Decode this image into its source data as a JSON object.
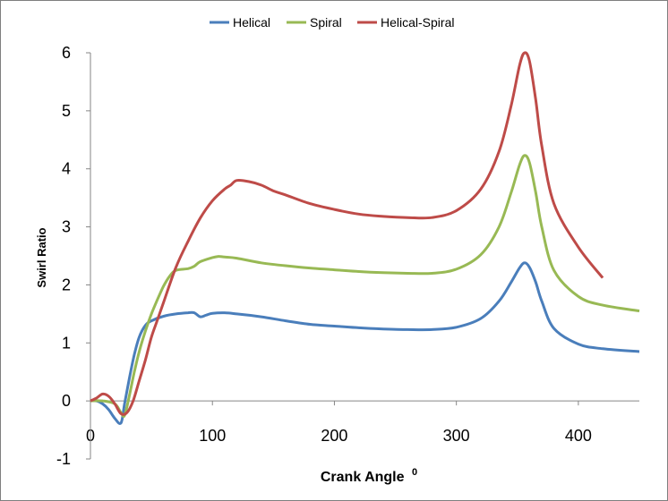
{
  "chart_data": {
    "type": "line",
    "title": "",
    "xlabel": "Crank Angle",
    "xlabel_superscript": "0",
    "ylabel": "Swirl Ratio",
    "xlim": [
      0,
      450
    ],
    "ylim": [
      -1,
      6
    ],
    "x_ticks": [
      "0",
      "100",
      "200",
      "300",
      "400"
    ],
    "y_ticks": [
      "-1",
      "0",
      "1",
      "2",
      "3",
      "4",
      "5",
      "6"
    ],
    "grid": false,
    "legend_position": "top",
    "series": [
      {
        "name": "Helical",
        "color": "#4a7ebb",
        "x": [
          0,
          5,
          10,
          15,
          20,
          25,
          28,
          32,
          36,
          40,
          45,
          50,
          60,
          70,
          80,
          85,
          90,
          95,
          100,
          110,
          120,
          140,
          160,
          180,
          200,
          220,
          240,
          260,
          280,
          300,
          320,
          335,
          345,
          352,
          356,
          360,
          365,
          370,
          380,
          400,
          420,
          450
        ],
        "y": [
          0.0,
          0.0,
          -0.05,
          -0.15,
          -0.3,
          -0.38,
          -0.05,
          0.4,
          0.8,
          1.1,
          1.3,
          1.38,
          1.46,
          1.5,
          1.52,
          1.52,
          1.45,
          1.48,
          1.51,
          1.52,
          1.5,
          1.45,
          1.38,
          1.32,
          1.29,
          1.26,
          1.24,
          1.23,
          1.23,
          1.27,
          1.42,
          1.72,
          2.05,
          2.3,
          2.38,
          2.3,
          2.05,
          1.72,
          1.25,
          0.98,
          0.9,
          0.85
        ]
      },
      {
        "name": "Spiral",
        "color": "#98b954",
        "x": [
          0,
          10,
          20,
          25,
          28,
          32,
          36,
          40,
          45,
          50,
          55,
          60,
          65,
          70,
          80,
          85,
          90,
          100,
          105,
          110,
          120,
          140,
          160,
          180,
          200,
          220,
          240,
          260,
          280,
          300,
          320,
          335,
          345,
          352,
          356,
          360,
          365,
          370,
          380,
          400,
          420,
          450
        ],
        "y": [
          0.0,
          0.0,
          -0.05,
          -0.2,
          -0.25,
          0.1,
          0.5,
          0.85,
          1.2,
          1.5,
          1.75,
          1.98,
          2.15,
          2.25,
          2.28,
          2.32,
          2.4,
          2.47,
          2.49,
          2.48,
          2.46,
          2.38,
          2.33,
          2.29,
          2.26,
          2.23,
          2.21,
          2.2,
          2.2,
          2.27,
          2.52,
          3.0,
          3.6,
          4.08,
          4.23,
          4.1,
          3.6,
          3.0,
          2.25,
          1.8,
          1.65,
          1.55
        ]
      },
      {
        "name": "Helical-Spiral",
        "color": "#be4b48",
        "x": [
          0,
          5,
          10,
          15,
          20,
          25,
          30,
          35,
          40,
          45,
          50,
          55,
          60,
          70,
          80,
          90,
          100,
          110,
          115,
          120,
          130,
          140,
          150,
          160,
          180,
          200,
          220,
          240,
          260,
          280,
          300,
          320,
          335,
          345,
          352,
          356,
          360,
          365,
          370,
          380,
          400,
          420
        ],
        "y": [
          0.0,
          0.05,
          0.12,
          0.08,
          -0.05,
          -0.22,
          -0.2,
          0.0,
          0.35,
          0.7,
          1.1,
          1.4,
          1.7,
          2.3,
          2.75,
          3.15,
          3.45,
          3.65,
          3.72,
          3.8,
          3.78,
          3.72,
          3.62,
          3.55,
          3.4,
          3.3,
          3.22,
          3.18,
          3.16,
          3.16,
          3.28,
          3.65,
          4.3,
          5.1,
          5.8,
          6.0,
          5.85,
          5.2,
          4.4,
          3.4,
          2.65,
          2.12
        ]
      }
    ]
  }
}
